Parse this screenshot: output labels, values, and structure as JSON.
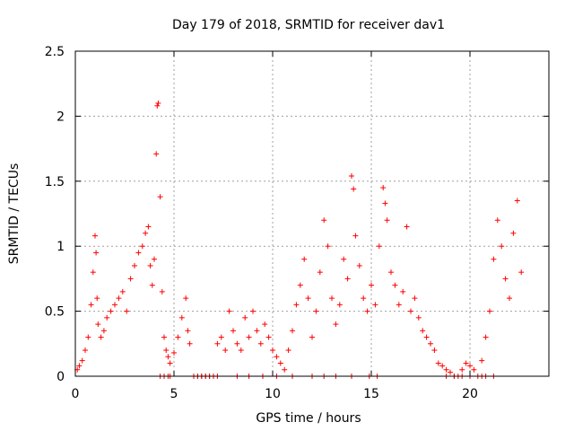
{
  "chart_data": {
    "type": "scatter",
    "title": "Day 179 of 2018, SRMTID for receiver dav1",
    "xlabel": "GPS time / hours",
    "ylabel": "SRMTID / TECUs",
    "xlim": [
      0,
      24
    ],
    "ylim": [
      0,
      2.5
    ],
    "xticks": [
      0,
      5,
      10,
      15,
      20
    ],
    "yticks": [
      0,
      0.5,
      1,
      1.5,
      2,
      2.5
    ],
    "ytick_labels": [
      "0",
      "0.5",
      "1",
      "1.5",
      "2",
      "2.5"
    ],
    "grid": true,
    "marker": "+",
    "series": [
      {
        "name": "SRMTID",
        "color": "#ff0000",
        "x": [
          0.1,
          0.2,
          0.35,
          0.5,
          0.65,
          0.8,
          0.9,
          1.0,
          1.05,
          1.1,
          1.15,
          1.3,
          1.45,
          1.6,
          1.8,
          2.0,
          2.2,
          2.4,
          2.6,
          2.8,
          3.0,
          3.2,
          3.4,
          3.55,
          3.7,
          3.8,
          3.9,
          4.0,
          4.1,
          4.15,
          4.2,
          4.3,
          4.4,
          4.5,
          4.6,
          4.7,
          4.8,
          5.0,
          5.2,
          5.4,
          5.6,
          5.7,
          5.8,
          6.0,
          6.2,
          6.4,
          6.6,
          6.8,
          7.0,
          7.2,
          7.4,
          7.6,
          7.8,
          8.0,
          8.2,
          8.4,
          8.6,
          8.8,
          9.0,
          9.2,
          9.4,
          9.6,
          9.8,
          10.0,
          10.2,
          10.4,
          10.6,
          10.8,
          11.0,
          11.2,
          11.4,
          11.6,
          11.8,
          12.0,
          12.2,
          12.4,
          12.6,
          12.8,
          13.0,
          13.2,
          13.4,
          13.6,
          13.8,
          14.0,
          14.1,
          14.2,
          14.4,
          14.6,
          14.8,
          15.0,
          15.2,
          15.4,
          15.6,
          15.7,
          15.8,
          16.0,
          16.2,
          16.4,
          16.6,
          16.8,
          17.0,
          17.2,
          17.4,
          17.6,
          17.8,
          18.0,
          18.2,
          18.4,
          18.6,
          18.8,
          19.0,
          19.2,
          19.4,
          19.6,
          19.8,
          20.0,
          20.2,
          20.4,
          20.6,
          20.8,
          21.0,
          21.2,
          21.4,
          21.6,
          21.8,
          22.0,
          22.2,
          22.4,
          22.6
        ],
        "y": [
          0.05,
          0.08,
          0.12,
          0.2,
          0.3,
          0.55,
          0.8,
          1.08,
          0.95,
          0.6,
          0.4,
          0.3,
          0.35,
          0.45,
          0.5,
          0.55,
          0.6,
          0.65,
          0.5,
          0.75,
          0.85,
          0.95,
          1.0,
          1.1,
          1.15,
          0.85,
          0.7,
          0.9,
          1.71,
          2.08,
          2.1,
          1.38,
          0.65,
          0.3,
          0.2,
          0.15,
          0.1,
          0.18,
          0.3,
          0.45,
          0.6,
          0.35,
          0.25,
          0.0,
          0.0,
          0.0,
          0.0,
          0.0,
          0.0,
          0.25,
          0.3,
          0.2,
          0.5,
          0.35,
          0.25,
          0.2,
          0.45,
          0.3,
          0.5,
          0.35,
          0.25,
          0.4,
          0.3,
          0.2,
          0.15,
          0.1,
          0.05,
          0.2,
          0.35,
          0.55,
          0.7,
          0.9,
          0.6,
          0.3,
          0.5,
          0.8,
          1.2,
          1.0,
          0.6,
          0.4,
          0.55,
          0.9,
          0.75,
          1.54,
          1.44,
          1.08,
          0.85,
          0.6,
          0.5,
          0.7,
          0.55,
          1.0,
          1.45,
          1.33,
          1.2,
          0.8,
          0.7,
          0.55,
          0.65,
          1.15,
          0.5,
          0.6,
          0.45,
          0.35,
          0.3,
          0.25,
          0.2,
          0.1,
          0.08,
          0.05,
          0.03,
          0.0,
          0.0,
          0.05,
          0.1,
          0.08,
          0.05,
          0.0,
          0.12,
          0.3,
          0.5,
          0.9,
          1.2,
          1.0,
          0.75,
          0.6,
          1.1,
          1.35,
          0.8
        ]
      }
    ],
    "zero_markers_x": [
      4.3,
      4.5,
      4.7,
      4.8,
      6.0,
      6.2,
      6.4,
      6.6,
      6.8,
      7.0,
      7.2,
      8.2,
      8.8,
      9.5,
      10.2,
      11.0,
      12.0,
      12.6,
      13.2,
      14.0,
      14.9,
      15.3,
      18.8,
      19.2,
      19.6,
      20.0,
      20.6,
      20.8,
      21.2
    ]
  }
}
